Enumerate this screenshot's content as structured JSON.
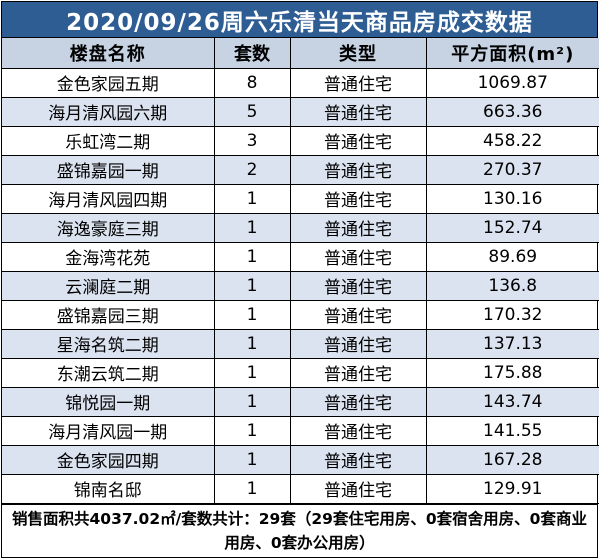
{
  "title": "2020/09/26周六乐清当天商品房成交数据",
  "headers": [
    "楼盘名称",
    "套数",
    "类型",
    "平方面积(m²)"
  ],
  "rows": [
    {
      "name": "金色家园五期",
      "units": "8",
      "type": "普通住宅",
      "area": "1069.87"
    },
    {
      "name": "海月清风园六期",
      "units": "5",
      "type": "普通住宅",
      "area": "663.36"
    },
    {
      "name": "乐虹湾二期",
      "units": "3",
      "type": "普通住宅",
      "area": "458.22"
    },
    {
      "name": "盛锦嘉园一期",
      "units": "2",
      "type": "普通住宅",
      "area": "270.37"
    },
    {
      "name": "海月清风园四期",
      "units": "1",
      "type": "普通住宅",
      "area": "130.16"
    },
    {
      "name": "海逸豪庭三期",
      "units": "1",
      "type": "普通住宅",
      "area": "152.74"
    },
    {
      "name": "金海湾花苑",
      "units": "1",
      "type": "普通住宅",
      "area": "89.69"
    },
    {
      "name": "云澜庭二期",
      "units": "1",
      "type": "普通住宅",
      "area": "136.8"
    },
    {
      "name": "盛锦嘉园三期",
      "units": "1",
      "type": "普通住宅",
      "area": "170.32"
    },
    {
      "name": "星海名筑二期",
      "units": "1",
      "type": "普通住宅",
      "area": "137.13"
    },
    {
      "name": "东潮云筑二期",
      "units": "1",
      "type": "普通住宅",
      "area": "175.88"
    },
    {
      "name": "锦悦园一期",
      "units": "1",
      "type": "普通住宅",
      "area": "143.74"
    },
    {
      "name": "海月清风园一期",
      "units": "1",
      "type": "普通住宅",
      "area": "141.55"
    },
    {
      "name": "金色家园四期",
      "units": "1",
      "type": "普通住宅",
      "area": "167.28"
    },
    {
      "name": "锦南名邸",
      "units": "1",
      "type": "普通住宅",
      "area": "129.91"
    }
  ],
  "footer": "销售面积共4037.02㎡/套数共计：29套（29套住宅用房、0套宿舍用房、0套商业用房、0套办公用房）",
  "colors": {
    "title_bg": "#2e5d94",
    "header_bg": "#c7d2e3",
    "alt_row_bg": "#dbe3f0"
  }
}
